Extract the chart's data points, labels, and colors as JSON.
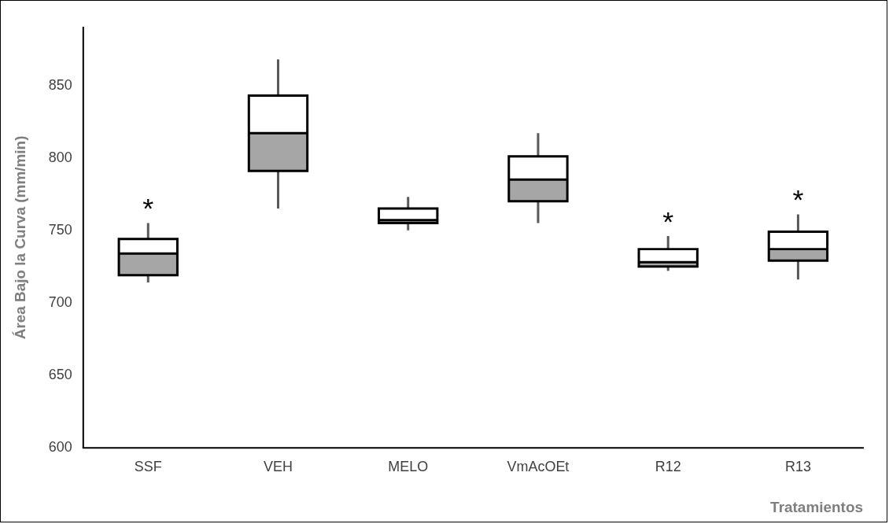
{
  "chart_data": {
    "type": "box",
    "xlabel": "Tratamientos",
    "ylabel": "Área Bajo la Curva (mm/min)",
    "categories": [
      "SSF",
      "VEH",
      "MELO",
      "VmAcOEt",
      "R12",
      "R13"
    ],
    "boxes": [
      {
        "low": 714,
        "q1": 719,
        "median": 734,
        "q3": 744,
        "high": 755
      },
      {
        "low": 765,
        "q1": 791,
        "median": 817,
        "q3": 843,
        "high": 868
      },
      {
        "low": 750,
        "q1": 755,
        "median": 757,
        "q3": 765,
        "high": 773
      },
      {
        "low": 755,
        "q1": 770,
        "median": 785,
        "q3": 801,
        "high": 817
      },
      {
        "low": 722,
        "q1": 725,
        "median": 728,
        "q3": 737,
        "high": 746
      },
      {
        "low": 716,
        "q1": 729,
        "median": 737,
        "q3": 749,
        "high": 761
      }
    ],
    "color": "#a6a6a6",
    "ylim": [
      600,
      890
    ],
    "yticks": [
      600,
      650,
      700,
      750,
      800,
      850
    ],
    "grid": false,
    "legend": false,
    "annotations": [
      {
        "text": "*",
        "x": "SSF",
        "y": 755
      },
      {
        "text": "*",
        "x": "R12",
        "y": 746
      },
      {
        "text": "*",
        "x": "R13",
        "y": 761
      }
    ]
  }
}
